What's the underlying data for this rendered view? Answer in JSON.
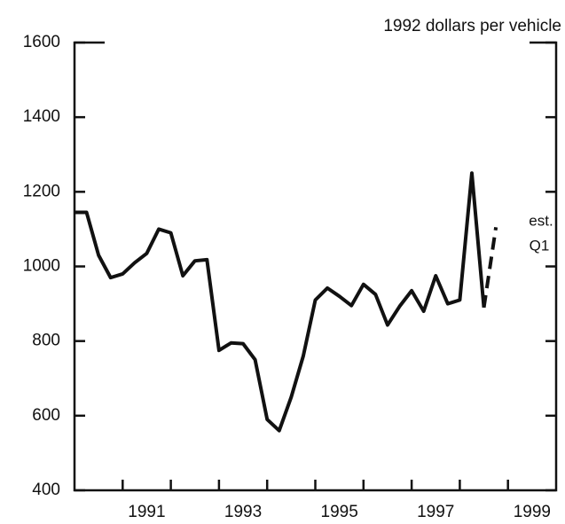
{
  "chart_data": {
    "type": "line",
    "unit_label": "1992 dollars per vehicle",
    "series": [
      {
        "color": "#111111",
        "style": "solid",
        "x": [
          1990.0,
          1990.25,
          1990.5,
          1990.75,
          1991.0,
          1991.25,
          1991.5,
          1991.75,
          1992.0,
          1992.25,
          1992.5,
          1992.75,
          1993.0,
          1993.25,
          1993.5,
          1993.75,
          1994.0,
          1994.25,
          1994.5,
          1994.75,
          1995.0,
          1995.25,
          1995.5,
          1995.75,
          1996.0,
          1996.25,
          1996.5,
          1996.75,
          1997.0,
          1997.25,
          1997.5,
          1997.75,
          1998.0,
          1998.25,
          1998.5
        ],
        "values": [
          1145,
          1145,
          1030,
          970,
          980,
          1010,
          1035,
          1100,
          1090,
          975,
          1015,
          1018,
          775,
          795,
          793,
          750,
          590,
          560,
          650,
          760,
          910,
          942,
          920,
          895,
          952,
          925,
          843,
          893,
          935,
          880,
          975,
          900,
          910,
          1250,
          890
        ]
      },
      {
        "color": "#111111",
        "style": "dashed",
        "x": [
          1998.5,
          1998.75
        ],
        "values": [
          890,
          1105
        ]
      }
    ],
    "annotations": [
      "est.",
      "Q1"
    ],
    "xlim": [
      1990,
      2000
    ],
    "xticks": [
      1991,
      1993,
      1995,
      1997,
      1999
    ],
    "xminor": [
      1992,
      1994,
      1996,
      1998
    ],
    "ylim": [
      400,
      1600
    ],
    "yticks": [
      400,
      600,
      800,
      1000,
      1200,
      1400,
      1600
    ]
  }
}
